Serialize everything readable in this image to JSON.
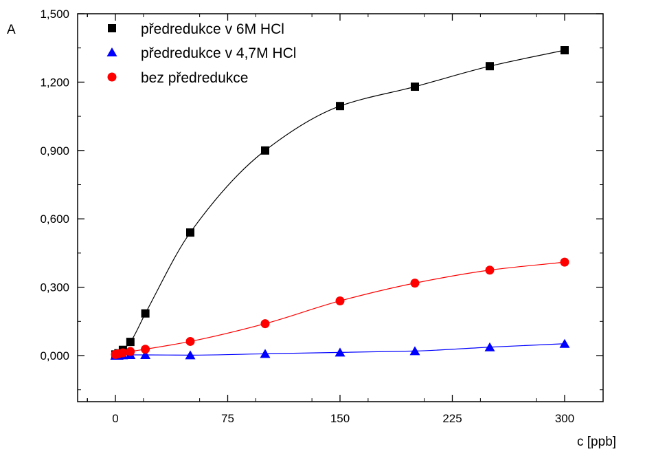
{
  "chart_data": {
    "type": "line",
    "title": "",
    "xlabel": "c [ppb]",
    "ylabel": "A",
    "xlim": [
      -25,
      325
    ],
    "ylim": [
      -0.2,
      1.5
    ],
    "x_ticks": [
      "0",
      "75",
      "150",
      "225",
      "300"
    ],
    "x_tick_values": [
      0,
      75,
      150,
      225,
      300
    ],
    "y_ticks": [
      "0,000",
      "0,300",
      "0,600",
      "0,900",
      "1,200",
      "1,500"
    ],
    "y_tick_values": [
      0,
      0.3,
      0.6,
      0.9,
      1.2,
      1.5
    ],
    "grid": false,
    "legend_position": "top-left",
    "series": [
      {
        "name": "předredukce v 6M HCl",
        "marker": "square",
        "color": "#000000",
        "x": [
          0,
          2,
          5,
          10,
          20,
          50,
          100,
          150,
          200,
          250,
          300
        ],
        "y": [
          0.005,
          0.01,
          0.025,
          0.06,
          0.185,
          0.54,
          0.9,
          1.095,
          1.18,
          1.27,
          1.34
        ]
      },
      {
        "name": "předredukce v 4,7M HCl",
        "marker": "triangle",
        "color": "#0000ff",
        "x": [
          0,
          2,
          5,
          10,
          20,
          50,
          100,
          150,
          200,
          250,
          300
        ],
        "y": [
          0.0,
          0.0,
          0.002,
          0.003,
          0.003,
          0.002,
          0.008,
          0.014,
          0.02,
          0.037,
          0.052
        ]
      },
      {
        "name": "bez předredukce",
        "marker": "circle",
        "color": "#ff0000",
        "x": [
          0,
          2,
          5,
          10,
          20,
          50,
          100,
          150,
          200,
          250,
          300
        ],
        "y": [
          0.005,
          0.008,
          0.012,
          0.018,
          0.028,
          0.062,
          0.14,
          0.24,
          0.318,
          0.375,
          0.41
        ]
      }
    ]
  }
}
